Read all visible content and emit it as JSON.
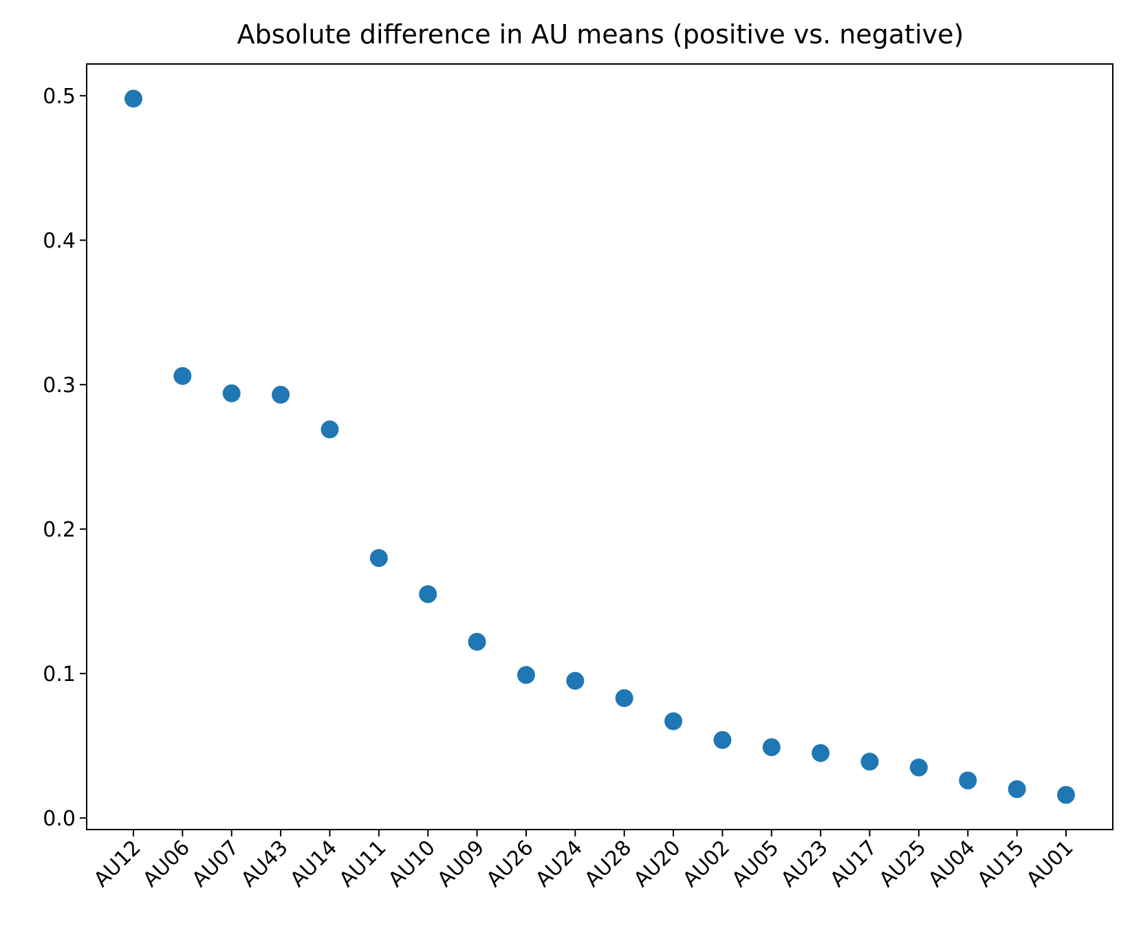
{
  "chart_data": {
    "type": "scatter",
    "title": "Absolute difference in AU means (positive vs. negative)",
    "xlabel": "",
    "ylabel": "",
    "categories": [
      "AU12",
      "AU06",
      "AU07",
      "AU43",
      "AU14",
      "AU11",
      "AU10",
      "AU09",
      "AU26",
      "AU24",
      "AU28",
      "AU20",
      "AU02",
      "AU05",
      "AU23",
      "AU17",
      "AU25",
      "AU04",
      "AU15",
      "AU01"
    ],
    "values": [
      0.498,
      0.306,
      0.294,
      0.293,
      0.269,
      0.18,
      0.155,
      0.122,
      0.099,
      0.095,
      0.083,
      0.067,
      0.054,
      0.049,
      0.045,
      0.039,
      0.035,
      0.026,
      0.02,
      0.016
    ],
    "yticks": [
      "0.0",
      "0.1",
      "0.2",
      "0.3",
      "0.4",
      "0.5"
    ],
    "ylim": [
      -0.008,
      0.522
    ],
    "grid": false,
    "legend": "none",
    "marker_color": "#1f77b4"
  }
}
